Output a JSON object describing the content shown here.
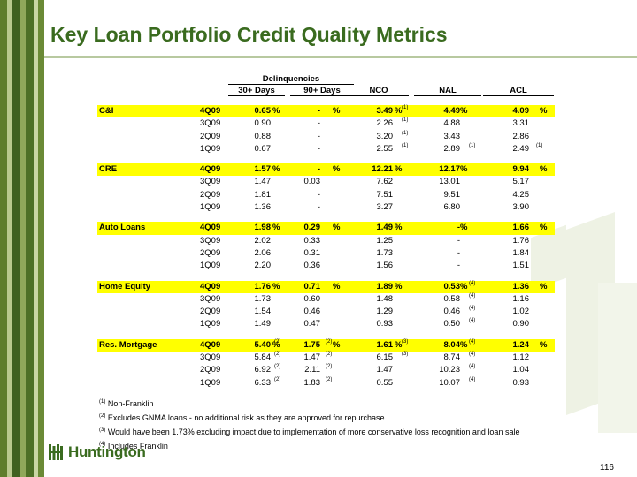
{
  "title": "Key Loan Portfolio Credit Quality Metrics",
  "headers": {
    "delinquencies": "Delinquencies",
    "d30": "30+ Days",
    "d90": "90+ Days",
    "nco": "NCO",
    "nal": "NAL",
    "acl": "ACL"
  },
  "sections": [
    {
      "name": "C&I",
      "rows": [
        {
          "q": "4Q09",
          "d30": "0.65",
          "d30n": "",
          "d90": "-",
          "d90n": "",
          "nco": "3.49",
          "ncon": "(1)",
          "nal": "4.49",
          "naln": "",
          "acl": "4.09",
          "acln": "",
          "pct": true
        },
        {
          "q": "3Q09",
          "d30": "0.90",
          "d30n": "",
          "d90": "-",
          "d90n": "",
          "nco": "2.26",
          "ncon": "(1)",
          "nal": "4.88",
          "naln": "",
          "acl": "3.31",
          "acln": ""
        },
        {
          "q": "2Q09",
          "d30": "0.88",
          "d30n": "",
          "d90": "-",
          "d90n": "",
          "nco": "3.20",
          "ncon": "(1)",
          "nal": "3.43",
          "naln": "",
          "acl": "2.86",
          "acln": ""
        },
        {
          "q": "1Q09",
          "d30": "0.67",
          "d30n": "",
          "d90": "-",
          "d90n": "",
          "nco": "2.55",
          "ncon": "(1)",
          "nal": "2.89",
          "naln": "(1)",
          "acl": "2.49",
          "acln": "(1)"
        }
      ]
    },
    {
      "name": "CRE",
      "rows": [
        {
          "q": "4Q09",
          "d30": "1.57",
          "d30n": "",
          "d90": "-",
          "d90n": "",
          "nco": "12.21",
          "ncon": "",
          "nal": "12.17",
          "naln": "",
          "acl": "9.94",
          "acln": "",
          "pct": true
        },
        {
          "q": "3Q09",
          "d30": "1.47",
          "d30n": "",
          "d90": "0.03",
          "d90n": "",
          "nco": "7.62",
          "ncon": "",
          "nal": "13.01",
          "naln": "",
          "acl": "5.17",
          "acln": ""
        },
        {
          "q": "2Q09",
          "d30": "1.81",
          "d30n": "",
          "d90": "-",
          "d90n": "",
          "nco": "7.51",
          "ncon": "",
          "nal": "9.51",
          "naln": "",
          "acl": "4.25",
          "acln": ""
        },
        {
          "q": "1Q09",
          "d30": "1.36",
          "d30n": "",
          "d90": "-",
          "d90n": "",
          "nco": "3.27",
          "ncon": "",
          "nal": "6.80",
          "naln": "",
          "acl": "3.90",
          "acln": ""
        }
      ]
    },
    {
      "name": "Auto Loans",
      "rows": [
        {
          "q": "4Q09",
          "d30": "1.98",
          "d30n": "",
          "d90": "0.29",
          "d90n": "",
          "nco": "1.49",
          "ncon": "",
          "nal": "-",
          "naln": "",
          "acl": "1.66",
          "acln": "",
          "pct": true
        },
        {
          "q": "3Q09",
          "d30": "2.02",
          "d30n": "",
          "d90": "0.33",
          "d90n": "",
          "nco": "1.25",
          "ncon": "",
          "nal": "-",
          "naln": "",
          "acl": "1.76",
          "acln": ""
        },
        {
          "q": "2Q09",
          "d30": "2.06",
          "d30n": "",
          "d90": "0.31",
          "d90n": "",
          "nco": "1.73",
          "ncon": "",
          "nal": "-",
          "naln": "",
          "acl": "1.84",
          "acln": ""
        },
        {
          "q": "1Q09",
          "d30": "2.20",
          "d30n": "",
          "d90": "0.36",
          "d90n": "",
          "nco": "1.56",
          "ncon": "",
          "nal": "-",
          "naln": "",
          "acl": "1.51",
          "acln": ""
        }
      ]
    },
    {
      "name": "Home Equity",
      "rows": [
        {
          "q": "4Q09",
          "d30": "1.76",
          "d30n": "",
          "d90": "0.71",
          "d90n": "",
          "nco": "1.89",
          "ncon": "",
          "nal": "0.53",
          "naln": "(4)",
          "acl": "1.36",
          "acln": "",
          "pct": true
        },
        {
          "q": "3Q09",
          "d30": "1.73",
          "d30n": "",
          "d90": "0.60",
          "d90n": "",
          "nco": "1.48",
          "ncon": "",
          "nal": "0.58",
          "naln": "(4)",
          "acl": "1.16",
          "acln": ""
        },
        {
          "q": "2Q09",
          "d30": "1.54",
          "d30n": "",
          "d90": "0.46",
          "d90n": "",
          "nco": "1.29",
          "ncon": "",
          "nal": "0.46",
          "naln": "(4)",
          "acl": "1.02",
          "acln": ""
        },
        {
          "q": "1Q09",
          "d30": "1.49",
          "d30n": "",
          "d90": "0.47",
          "d90n": "",
          "nco": "0.93",
          "ncon": "",
          "nal": "0.50",
          "naln": "(4)",
          "acl": "0.90",
          "acln": ""
        }
      ]
    },
    {
      "name": "Res. Mortgage",
      "rows": [
        {
          "q": "4Q09",
          "d30": "5.40",
          "d30n": "(2)",
          "d90": "1.75",
          "d90n": "(2)",
          "nco": "1.61",
          "ncon": "(3)",
          "nal": "8.04",
          "naln": "(4)",
          "acl": "1.24",
          "acln": "",
          "pct": true
        },
        {
          "q": "3Q09",
          "d30": "5.84",
          "d30n": "(2)",
          "d90": "1.47",
          "d90n": "(2)",
          "nco": "6.15",
          "ncon": "(3)",
          "nal": "8.74",
          "naln": "(4)",
          "acl": "1.12",
          "acln": ""
        },
        {
          "q": "2Q09",
          "d30": "6.92",
          "d30n": "(2)",
          "d90": "2.11",
          "d90n": "(2)",
          "nco": "1.47",
          "ncon": "",
          "nal": "10.23",
          "naln": "(4)",
          "acl": "1.04",
          "acln": ""
        },
        {
          "q": "1Q09",
          "d30": "6.33",
          "d30n": "(2)",
          "d90": "1.83",
          "d90n": "(2)",
          "nco": "0.55",
          "ncon": "",
          "nal": "10.07",
          "naln": "(4)",
          "acl": "0.93",
          "acln": ""
        }
      ]
    }
  ],
  "pct": "%",
  "footnotes": [
    {
      "mark": "(1)",
      "text": "Non-Franklin"
    },
    {
      "mark": "(2)",
      "text": "Excludes GNMA loans - no additional risk as they are approved for repurchase"
    },
    {
      "mark": "(3)",
      "text": "Would have been 1.73% excluding impact due to implementation of more conservative loss recognition and loan sale"
    },
    {
      "mark": "(4)",
      "text": "Includes Franklin"
    }
  ],
  "logo_text": "Huntington",
  "page_number": "116",
  "colors": {
    "title_green": "#3a6b1f",
    "highlight": "#ffff00"
  }
}
